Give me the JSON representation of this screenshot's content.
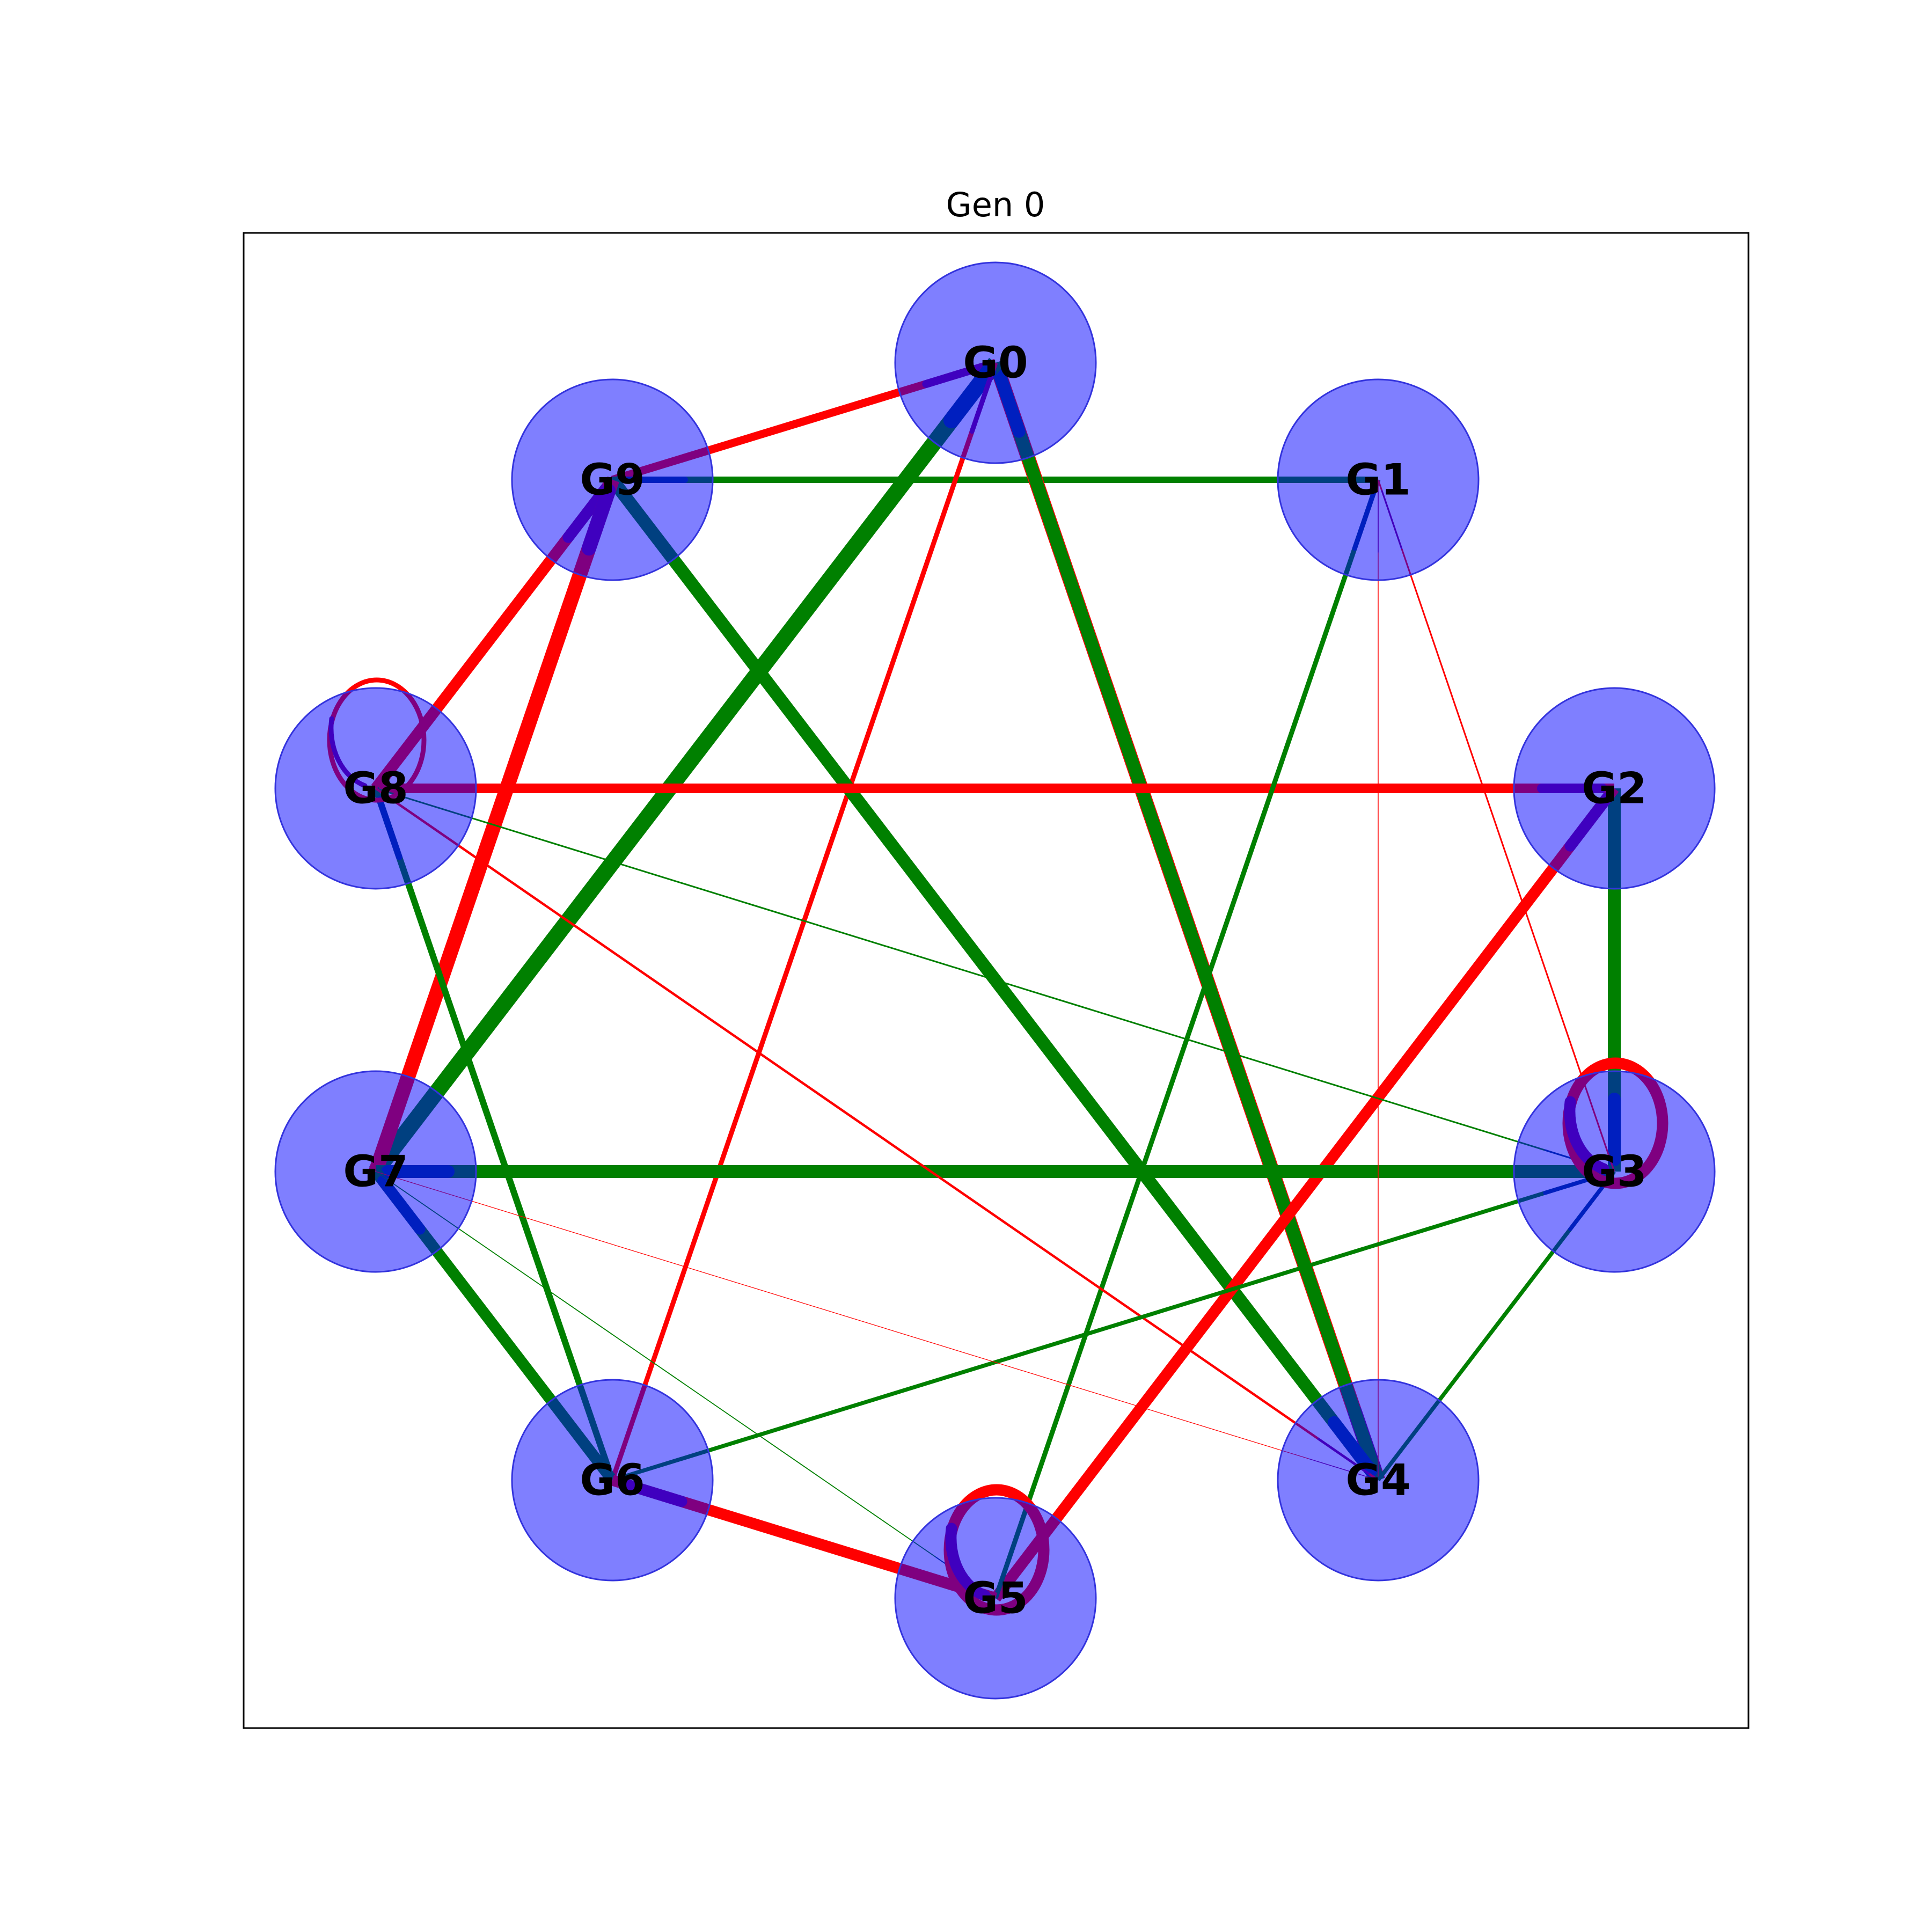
{
  "title": "Gen 0",
  "colors": {
    "node_fill": "#0000ff",
    "node_stroke": "#3333dd",
    "activating": "#008000",
    "repressing": "#ff0000",
    "head_activating": "#003f7f",
    "head_repressing": "#7f007f"
  },
  "nodes": [
    {
      "id": "G0",
      "label": "G0"
    },
    {
      "id": "G1",
      "label": "G1"
    },
    {
      "id": "G2",
      "label": "G2"
    },
    {
      "id": "G3",
      "label": "G3"
    },
    {
      "id": "G4",
      "label": "G4"
    },
    {
      "id": "G5",
      "label": "G5"
    },
    {
      "id": "G6",
      "label": "G6"
    },
    {
      "id": "G7",
      "label": "G7"
    },
    {
      "id": "G8",
      "label": "G8"
    },
    {
      "id": "G9",
      "label": "G9"
    }
  ],
  "edges": [
    {
      "source": "G9",
      "target": "G0",
      "sign": "repressing",
      "weight": 5
    },
    {
      "source": "G1",
      "target": "G9",
      "sign": "activating",
      "weight": 4
    },
    {
      "source": "G0",
      "target": "G4",
      "sign": "repressing",
      "weight": 9
    },
    {
      "source": "G4",
      "target": "G0",
      "sign": "activating",
      "weight": 8
    },
    {
      "source": "G7",
      "target": "G0",
      "sign": "activating",
      "weight": 10
    },
    {
      "source": "G6",
      "target": "G0",
      "sign": "repressing",
      "weight": 3
    },
    {
      "source": "G9",
      "target": "G4",
      "sign": "activating",
      "weight": 8
    },
    {
      "source": "G8",
      "target": "G9",
      "sign": "repressing",
      "weight": 7
    },
    {
      "source": "G7",
      "target": "G9",
      "sign": "repressing",
      "weight": 9
    },
    {
      "source": "G8",
      "target": "G2",
      "sign": "repressing",
      "weight": 6
    },
    {
      "source": "G2",
      "target": "G3",
      "sign": "activating",
      "weight": 8
    },
    {
      "source": "G5",
      "target": "G2",
      "sign": "repressing",
      "weight": 7
    },
    {
      "source": "G3",
      "target": "G7",
      "sign": "activating",
      "weight": 8
    },
    {
      "source": "G5",
      "target": "G1",
      "sign": "activating",
      "weight": 3
    },
    {
      "source": "G3",
      "target": "G1",
      "sign": "repressing",
      "weight": 1
    },
    {
      "source": "G4",
      "target": "G1",
      "sign": "repressing",
      "weight": 0.5
    },
    {
      "source": "G6",
      "target": "G8",
      "sign": "activating",
      "weight": 4
    },
    {
      "source": "G8",
      "target": "G3",
      "sign": "activating",
      "weight": 1
    },
    {
      "source": "G8",
      "target": "G4",
      "sign": "repressing",
      "weight": 1.5
    },
    {
      "source": "G6",
      "target": "G7",
      "sign": "activating",
      "weight": 7
    },
    {
      "source": "G6",
      "target": "G3",
      "sign": "activating",
      "weight": 2.5
    },
    {
      "source": "G5",
      "target": "G6",
      "sign": "repressing",
      "weight": 7
    },
    {
      "source": "G4",
      "target": "G3",
      "sign": "activating",
      "weight": 2.5
    },
    {
      "source": "G7",
      "target": "G5",
      "sign": "activating",
      "weight": 0.6
    },
    {
      "source": "G7",
      "target": "G4",
      "sign": "repressing",
      "weight": 0.4
    },
    {
      "source": "G8",
      "target": "G8",
      "sign": "repressing",
      "weight": 3
    },
    {
      "source": "G3",
      "target": "G3",
      "sign": "repressing",
      "weight": 7
    },
    {
      "source": "G5",
      "target": "G5",
      "sign": "repressing",
      "weight": 7
    }
  ]
}
